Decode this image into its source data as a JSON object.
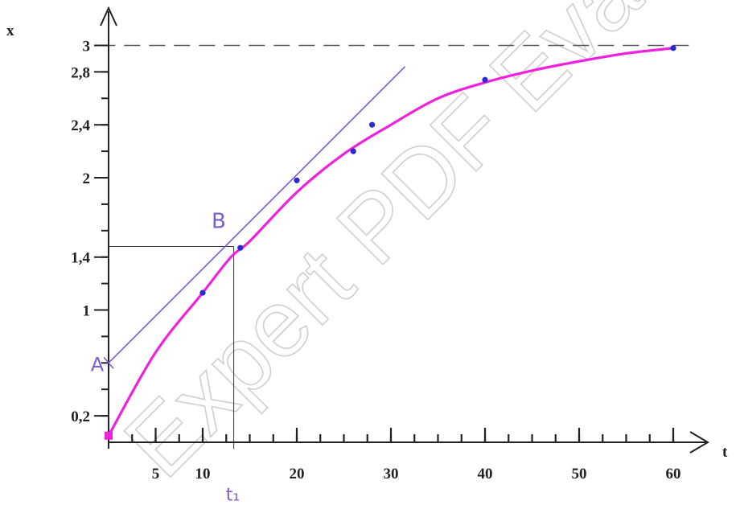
{
  "watermark": "Expert PDF Evaluation",
  "chart_data": {
    "type": "line",
    "xlabel": "t",
    "ylabel": "x",
    "xlim": [
      0,
      62
    ],
    "ylim": [
      0,
      3.2
    ],
    "xticks": [
      {
        "value": 5,
        "label": "5"
      },
      {
        "value": 10,
        "label": "10"
      },
      {
        "value": 20,
        "label": "20"
      },
      {
        "value": 30,
        "label": "30"
      },
      {
        "value": 40,
        "label": "40"
      },
      {
        "value": 50,
        "label": "50"
      },
      {
        "value": 60,
        "label": "60"
      }
    ],
    "yticks": [
      {
        "value": 0.2,
        "label": "0,2"
      },
      {
        "value": 1,
        "label": "1"
      },
      {
        "value": 1.4,
        "label": "1,4"
      },
      {
        "value": 2,
        "label": "2"
      },
      {
        "value": 2.4,
        "label": "2,4"
      },
      {
        "value": 2.8,
        "label": "2,8"
      },
      {
        "value": 3,
        "label": "3"
      }
    ],
    "x_minor_step": 2.5,
    "y_minor_step": 0.2,
    "curve": {
      "color": "#ee22dd",
      "x": [
        0,
        5,
        10,
        13,
        15,
        20,
        25,
        30,
        35,
        40,
        45,
        50,
        55,
        60
      ],
      "y": [
        0.05,
        0.68,
        1.13,
        1.4,
        1.52,
        1.89,
        2.18,
        2.4,
        2.6,
        2.72,
        2.81,
        2.88,
        2.94,
        2.98
      ]
    },
    "points": {
      "color": "#2a2ad0",
      "x": [
        10,
        14,
        20,
        26,
        28,
        40,
        60
      ],
      "y": [
        1.13,
        1.47,
        1.98,
        2.2,
        2.4,
        2.74,
        2.98
      ]
    },
    "tangent": {
      "color": "#7a5cd6",
      "x": [
        0,
        31.5
      ],
      "y": [
        0.6,
        2.84
      ]
    },
    "asymptote": {
      "y": 3,
      "style": "dashed"
    },
    "guide": {
      "x": 13.3,
      "y": 1.48
    },
    "annotations": [
      {
        "text": "A",
        "x": -1.2,
        "y": 0.6
      },
      {
        "text": "B",
        "x": 11.7,
        "y": 1.68
      },
      {
        "text": "t₁",
        "x": 13.2,
        "y": -0.38
      }
    ]
  }
}
